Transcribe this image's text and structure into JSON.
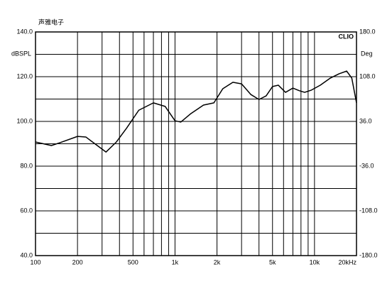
{
  "chart_data": {
    "type": "line",
    "title": "声雅电子",
    "brand": "CLIO",
    "ylabel": "dBSPL",
    "y2label": "Deg",
    "xscale": "log",
    "xlim": [
      100,
      20000
    ],
    "xticks": [
      100,
      200,
      500,
      {
        "value": 1000,
        "label": "1k"
      },
      {
        "value": 2000,
        "label": "2k"
      },
      {
        "value": 5000,
        "label": "5k"
      },
      {
        "value": 10000,
        "label": "10k"
      },
      {
        "value": 20000,
        "label": "20kHz"
      }
    ],
    "minor_xticks": [
      300,
      400,
      600,
      700,
      800,
      900,
      3000,
      4000,
      6000,
      7000,
      8000,
      9000
    ],
    "ylim": [
      40,
      140
    ],
    "yticks": [
      {
        "value": 40,
        "label": "40.0"
      },
      {
        "value": 60,
        "label": "60.0"
      },
      {
        "value": 80,
        "label": "80.0"
      },
      {
        "value": 100,
        "label": "100.0"
      },
      {
        "value": 120,
        "label": "120.0"
      },
      {
        "value": 140,
        "label": "140.0"
      }
    ],
    "minor_yticks": [
      50,
      70,
      90,
      110,
      130
    ],
    "y2lim": [
      -180,
      180
    ],
    "y2ticks": [
      {
        "value": -180,
        "label": "-180.0"
      },
      {
        "value": -108,
        "label": "-108.0"
      },
      {
        "value": -36,
        "label": "-36.0"
      },
      {
        "value": 36,
        "label": "36.0"
      },
      {
        "value": 108,
        "label": "108.0"
      },
      {
        "value": 180,
        "label": "180.0"
      }
    ],
    "grid": true,
    "x": [
      100,
      130,
      150,
      200,
      230,
      280,
      320,
      380,
      450,
      550,
      700,
      850,
      1000,
      1100,
      1300,
      1600,
      1900,
      2200,
      2600,
      3000,
      3500,
      4000,
      4500,
      5000,
      5500,
      6200,
      7000,
      7800,
      8500,
      9500,
      11000,
      13000,
      15000,
      17000,
      18500,
      20000
    ],
    "series": [
      {
        "color": "#000000",
        "values": [
          90.8,
          89.2,
          90.5,
          93.3,
          93,
          89,
          86.3,
          90.8,
          97,
          105,
          108.3,
          106.7,
          100.3,
          99.7,
          103.5,
          107.3,
          108.3,
          114.6,
          117.5,
          116.8,
          112,
          109.8,
          111.4,
          115.6,
          116.2,
          113,
          114.9,
          113.7,
          113,
          114,
          116.2,
          119.4,
          121.3,
          122.5,
          119.4,
          108.3
        ]
      }
    ]
  }
}
